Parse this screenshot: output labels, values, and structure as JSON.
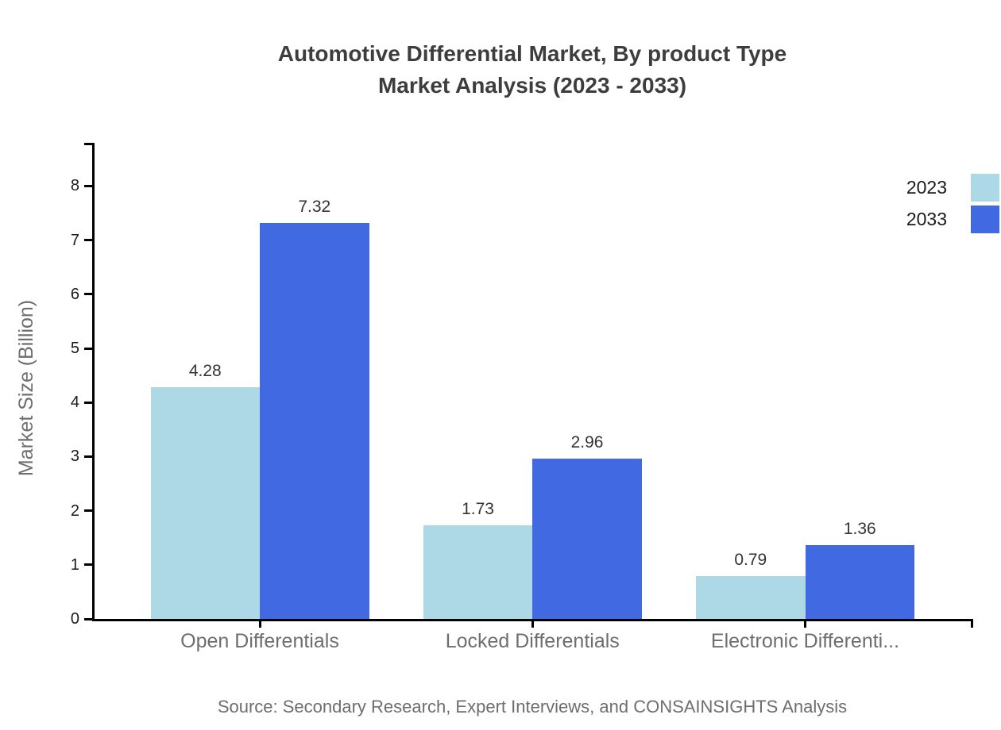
{
  "title": {
    "line1": "Automotive Differential Market, By product Type",
    "line2": "Market Analysis (2023 - 2033)"
  },
  "source": "Source: Secondary Research, Expert Interviews, and CONSAINSIGHTS Analysis",
  "legend": [
    {
      "label": "2023",
      "color": "#ADD8E6"
    },
    {
      "label": "2033",
      "color": "#4169E1"
    }
  ],
  "chart_data": {
    "type": "bar",
    "title": "Automotive Differential Market, By product Type Market Analysis (2023 - 2033)",
    "categories": [
      "Open Differentials",
      "Locked Differentials",
      "Electronic Differenti..."
    ],
    "series": [
      {
        "name": "2023",
        "color": "#ADD8E6",
        "values": [
          4.28,
          1.73,
          0.79
        ]
      },
      {
        "name": "2033",
        "color": "#4169E1",
        "values": [
          7.32,
          2.96,
          1.36
        ]
      }
    ],
    "value_labels": [
      "4.28",
      "7.32",
      "1.73",
      "2.96",
      "0.79",
      "1.36"
    ],
    "xlabel": "",
    "ylabel": "Market Size (Billion)",
    "ylim": [
      0,
      8
    ],
    "yticks": [
      0,
      1,
      2,
      3,
      4,
      5,
      6,
      7,
      8
    ],
    "grid": false,
    "legend_position": "top-right",
    "axis_color": "#000000",
    "text_color": "#6e6e6e"
  }
}
